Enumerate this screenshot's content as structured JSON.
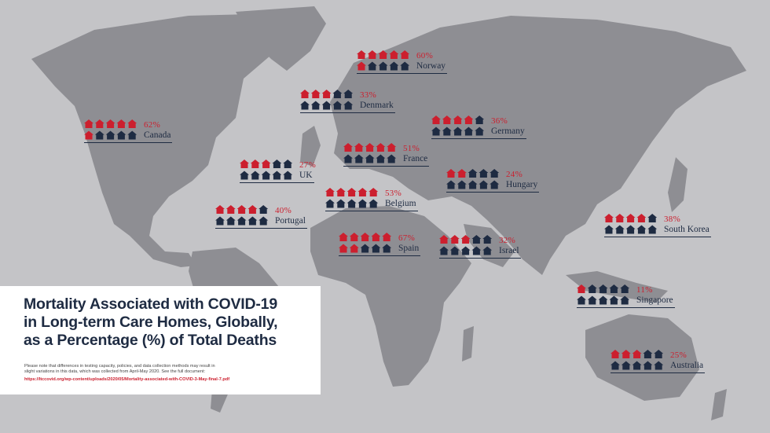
{
  "info": {
    "title_lines": [
      "Mortality Associated with COVID-19",
      "in Long-term Care Homes, Globally,",
      "as a Percentage (%) of Total Deaths"
    ],
    "note_lines": [
      "Please note that differences in testing capacity, policies, and data collection methods may result in",
      "slight variations in this data, which was collected from April-May 2020. See the full document:"
    ],
    "link": "https://ltccovid.org/wp-content/uploads/2020/05/Mortality-associated-with-COVID-3-May-final-7.pdf"
  },
  "colors": {
    "highlight": "#cc1f2e",
    "base": "#1e2b42",
    "map": "#8d8d92"
  },
  "chart_data": {
    "type": "pictograph",
    "icons_per_country": 10,
    "unit_value_pct": 10,
    "countries": [
      {
        "name": "Norway",
        "label": "60%",
        "value": 60
      },
      {
        "name": "Denmark",
        "label": "33%",
        "value": 33
      },
      {
        "name": "Canada",
        "label": "62%",
        "value": 62
      },
      {
        "name": "Germany",
        "label": "36%",
        "value": 36
      },
      {
        "name": "France",
        "label": "51%",
        "value": 51
      },
      {
        "name": "UK",
        "label": "27%",
        "value": 27
      },
      {
        "name": "Hungary",
        "label": "24%",
        "value": 24
      },
      {
        "name": "Belgium",
        "label": "53%",
        "value": 53
      },
      {
        "name": "Portugal",
        "label": "40%",
        "value": 40
      },
      {
        "name": "South Korea",
        "label": "38%",
        "value": 38
      },
      {
        "name": "Spain",
        "label": "67%",
        "value": 67
      },
      {
        "name": "Israel",
        "label": "32%",
        "value": 32
      },
      {
        "name": "Singapore",
        "label": "11%",
        "value": 11
      },
      {
        "name": "Australia",
        "label": "25%",
        "value": 25
      }
    ]
  }
}
